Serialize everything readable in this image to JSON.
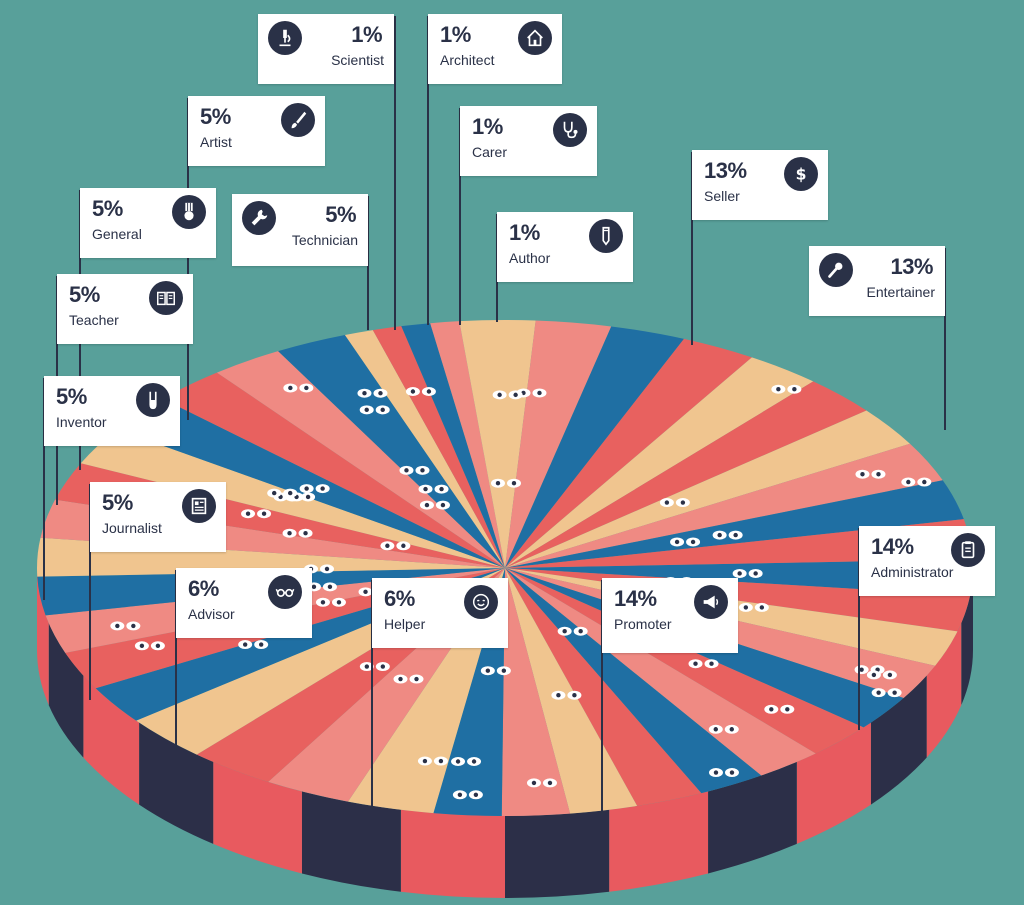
{
  "chart_data": {
    "type": "pie",
    "title": "",
    "slices": [
      {
        "label": "Administrator",
        "value": 14,
        "icon": "clipboard-icon"
      },
      {
        "label": "Promoter",
        "value": 14,
        "icon": "megaphone-icon"
      },
      {
        "label": "Helper",
        "value": 6,
        "icon": "smiley-icon"
      },
      {
        "label": "Advisor",
        "value": 6,
        "icon": "glasses-icon"
      },
      {
        "label": "Journalist",
        "value": 5,
        "icon": "newspaper-icon"
      },
      {
        "label": "Inventor",
        "value": 5,
        "icon": "test-tube-icon"
      },
      {
        "label": "Teacher",
        "value": 5,
        "icon": "book-icon"
      },
      {
        "label": "General",
        "value": 5,
        "icon": "medal-icon"
      },
      {
        "label": "Technician",
        "value": 5,
        "icon": "wrench-icon"
      },
      {
        "label": "Artist",
        "value": 5,
        "icon": "paintbrush-icon"
      },
      {
        "label": "Scientist",
        "value": 1,
        "icon": "microscope-icon"
      },
      {
        "label": "Architect",
        "value": 1,
        "icon": "house-icon"
      },
      {
        "label": "Carer",
        "value": 1,
        "icon": "stethoscope-icon"
      },
      {
        "label": "Author",
        "value": 1,
        "icon": "pencil-icon"
      },
      {
        "label": "Seller",
        "value": 13,
        "icon": "dollar-icon"
      },
      {
        "label": "Entertainer",
        "value": 13,
        "icon": "microphone-icon"
      }
    ],
    "value_suffix": "%",
    "colors": [
      "#1f6fa3",
      "#e8615f",
      "#f0c58f",
      "#ef8a83"
    ],
    "side_colors": [
      "#2c2f48",
      "#e85a5f"
    ]
  }
}
